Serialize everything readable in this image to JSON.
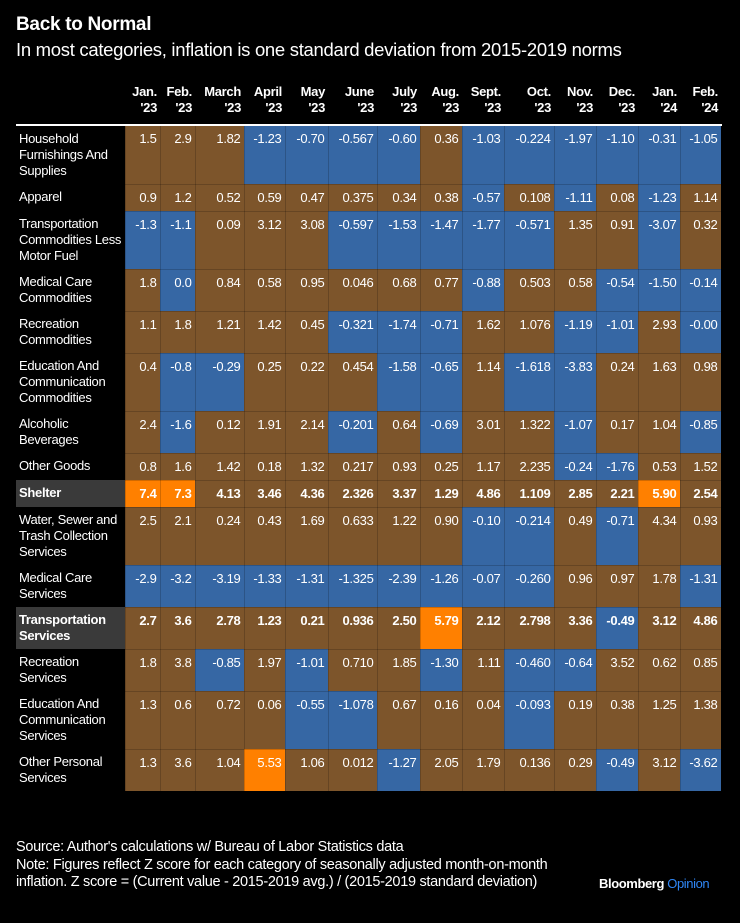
{
  "title": "Back to Normal",
  "subtitle": "In most categories, inflation is one standard deviation from 2015-2019 norms",
  "colors": {
    "negative": "#3667a4",
    "positive": "#7d552b",
    "extreme": "#ff8000",
    "highlight_label": "#3a3a3a"
  },
  "chart_data": {
    "type": "heatmap",
    "color_rule": "value <= 0 blue, value > 0 brown, value >= 5 orange",
    "columns": [
      [
        "Jan.",
        "'23"
      ],
      [
        "Feb.",
        "'23"
      ],
      [
        "March",
        "'23"
      ],
      [
        "April",
        "'23"
      ],
      [
        "May",
        "'23"
      ],
      [
        "June",
        "'23"
      ],
      [
        "July",
        "'23"
      ],
      [
        "Aug.",
        "'23"
      ],
      [
        "Sept.",
        "'23"
      ],
      [
        "Oct.",
        "'23"
      ],
      [
        "Nov.",
        "'23"
      ],
      [
        "Dec.",
        "'23"
      ],
      [
        "Jan.",
        "'24"
      ],
      [
        "Feb.",
        "'24"
      ]
    ],
    "rows": [
      {
        "label": "Household Furnishings And Supplies",
        "values": [
          "1.5",
          "2.9",
          "1.82",
          "-1.23",
          "-0.70",
          "-0.567",
          "-0.60",
          "0.36",
          "-1.03",
          "-0.224",
          "-1.97",
          "-1.10",
          "-0.31",
          "-1.05"
        ]
      },
      {
        "label": "Apparel",
        "values": [
          "0.9",
          "1.2",
          "0.52",
          "0.59",
          "0.47",
          "0.375",
          "0.34",
          "0.38",
          "-0.57",
          "0.108",
          "-1.11",
          "0.08",
          "-1.23",
          "1.14"
        ]
      },
      {
        "label": "Transportation Commodities Less Motor Fuel",
        "values": [
          "-1.3",
          "-1.1",
          "0.09",
          "3.12",
          "3.08",
          "-0.597",
          "-1.53",
          "-1.47",
          "-1.77",
          "-0.571",
          "1.35",
          "0.91",
          "-3.07",
          "0.32"
        ]
      },
      {
        "label": "Medical Care Commodities",
        "values": [
          "1.8",
          "0.0",
          "0.84",
          "0.58",
          "0.95",
          "0.046",
          "0.68",
          "0.77",
          "-0.88",
          "0.503",
          "0.58",
          "-0.54",
          "-1.50",
          "-0.14"
        ]
      },
      {
        "label": "Recreation Commodities",
        "values": [
          "1.1",
          "1.8",
          "1.21",
          "1.42",
          "0.45",
          "-0.321",
          "-1.74",
          "-0.71",
          "1.62",
          "1.076",
          "-1.19",
          "-1.01",
          "2.93",
          "-0.00"
        ]
      },
      {
        "label": "Education And Communication Commodities",
        "values": [
          "0.4",
          "-0.8",
          "-0.29",
          "0.25",
          "0.22",
          "0.454",
          "-1.58",
          "-0.65",
          "1.14",
          "-1.618",
          "-3.83",
          "0.24",
          "1.63",
          "0.98"
        ]
      },
      {
        "label": "Alcoholic Beverages",
        "values": [
          "2.4",
          "-1.6",
          "0.12",
          "1.91",
          "2.14",
          "-0.201",
          "0.64",
          "-0.69",
          "3.01",
          "1.322",
          "-1.07",
          "0.17",
          "1.04",
          "-0.85"
        ]
      },
      {
        "label": "Other Goods",
        "values": [
          "0.8",
          "1.6",
          "1.42",
          "0.18",
          "1.32",
          "0.217",
          "0.93",
          "0.25",
          "1.17",
          "2.235",
          "-0.24",
          "-1.76",
          "0.53",
          "1.52"
        ]
      },
      {
        "label": "Shelter",
        "highlight": true,
        "values": [
          "7.4",
          "7.3",
          "4.13",
          "3.46",
          "4.36",
          "2.326",
          "3.37",
          "1.29",
          "4.86",
          "1.109",
          "2.85",
          "2.21",
          "5.90",
          "2.54"
        ]
      },
      {
        "label": "Water, Sewer and Trash Collection Services",
        "values": [
          "2.5",
          "2.1",
          "0.24",
          "0.43",
          "1.69",
          "0.633",
          "1.22",
          "0.90",
          "-0.10",
          "-0.214",
          "0.49",
          "-0.71",
          "4.34",
          "0.93"
        ]
      },
      {
        "label": "Medical Care Services",
        "values": [
          "-2.9",
          "-3.2",
          "-3.19",
          "-1.33",
          "-1.31",
          "-1.325",
          "-2.39",
          "-1.26",
          "-0.07",
          "-0.260",
          "0.96",
          "0.97",
          "1.78",
          "-1.31"
        ]
      },
      {
        "label": "Transportation Services",
        "highlight": true,
        "values": [
          "2.7",
          "3.6",
          "2.78",
          "1.23",
          "0.21",
          "0.936",
          "2.50",
          "5.79",
          "2.12",
          "2.798",
          "3.36",
          "-0.49",
          "3.12",
          "4.86"
        ]
      },
      {
        "label": "Recreation Services",
        "values": [
          "1.8",
          "3.8",
          "-0.85",
          "1.97",
          "-1.01",
          "0.710",
          "1.85",
          "-1.30",
          "1.11",
          "-0.460",
          "-0.64",
          "3.52",
          "0.62",
          "0.85"
        ]
      },
      {
        "label": "Education And Communication Services",
        "values": [
          "1.3",
          "0.6",
          "0.72",
          "0.06",
          "-0.55",
          "-1.078",
          "0.67",
          "0.16",
          "0.04",
          "-0.093",
          "0.19",
          "0.38",
          "1.25",
          "1.38"
        ]
      },
      {
        "label": "Other Personal Services",
        "values": [
          "1.3",
          "3.6",
          "1.04",
          "5.53",
          "1.06",
          "0.012",
          "-1.27",
          "2.05",
          "1.79",
          "0.136",
          "0.29",
          "-0.49",
          "3.12",
          "-3.62"
        ]
      }
    ]
  },
  "footer": {
    "source": "Source: Author's calculations w/ Bureau of Labor Statistics data",
    "note": "Note: Figures reflect Z score for each category of seasonally adjusted month-on-month inflation. Z score = (Current value - 2015-2019 avg.) / (2015-2019 standard deviation)"
  },
  "brand": {
    "name": "Bloomberg",
    "section": "Opinion"
  }
}
